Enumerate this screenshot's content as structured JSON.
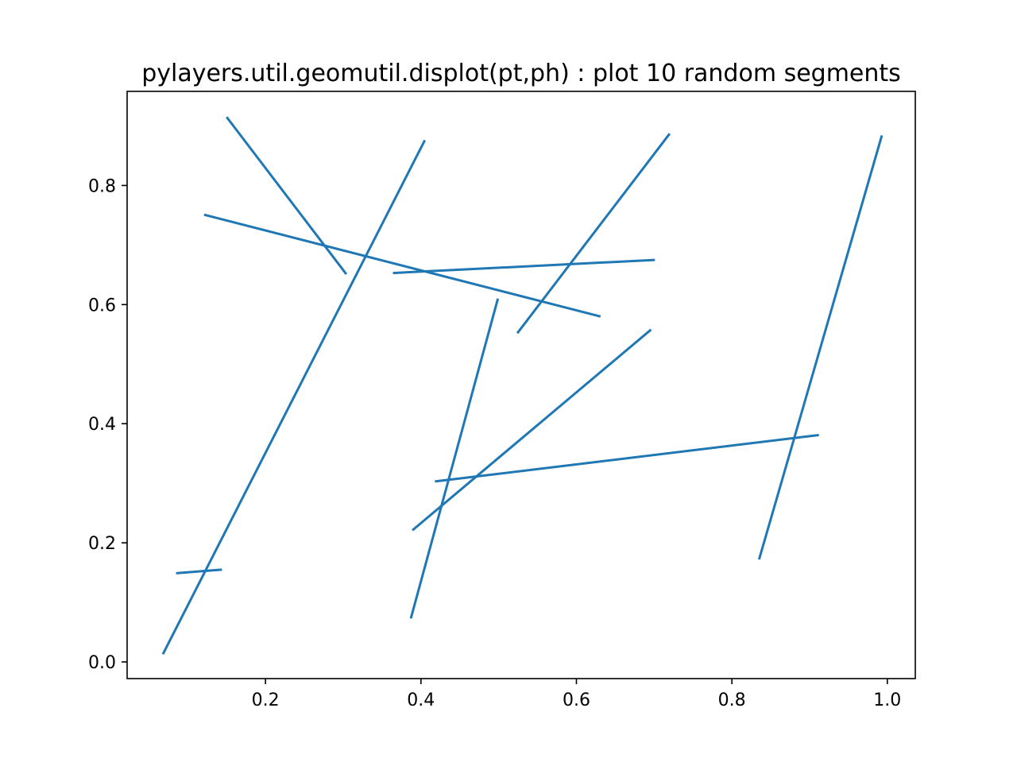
{
  "chart_data": {
    "type": "line",
    "title": "pylayers.util.geomutil.displot(pt,ph) : plot 10 random segments",
    "xlabel": "",
    "ylabel": "",
    "xlim": [
      0.022,
      1.036
    ],
    "ylim": [
      -0.028,
      0.958
    ],
    "xticks": [
      0.2,
      0.4,
      0.6,
      0.8,
      1.0
    ],
    "xtick_labels": [
      "0.2",
      "0.4",
      "0.6",
      "0.8",
      "1.0"
    ],
    "yticks": [
      0.0,
      0.2,
      0.4,
      0.6,
      0.8
    ],
    "ytick_labels": [
      "0.0",
      "0.2",
      "0.4",
      "0.6",
      "0.8"
    ],
    "grid": false,
    "legend": false,
    "color": "#1f77b4",
    "segments": [
      {
        "x": [
          0.15,
          0.304
        ],
        "y": [
          0.915,
          0.651
        ]
      },
      {
        "x": [
          0.068,
          0.405
        ],
        "y": [
          0.013,
          0.876
        ]
      },
      {
        "x": [
          0.121,
          0.631
        ],
        "y": [
          0.751,
          0.58
        ]
      },
      {
        "x": [
          0.364,
          0.701
        ],
        "y": [
          0.653,
          0.675
        ]
      },
      {
        "x": [
          0.524,
          0.72
        ],
        "y": [
          0.552,
          0.887
        ]
      },
      {
        "x": [
          0.387,
          0.499
        ],
        "y": [
          0.073,
          0.61
        ]
      },
      {
        "x": [
          0.389,
          0.696
        ],
        "y": [
          0.221,
          0.558
        ]
      },
      {
        "x": [
          0.418,
          0.912
        ],
        "y": [
          0.303,
          0.381
        ]
      },
      {
        "x": [
          0.835,
          0.993
        ],
        "y": [
          0.172,
          0.884
        ]
      },
      {
        "x": [
          0.085,
          0.144
        ],
        "y": [
          0.149,
          0.155
        ]
      }
    ]
  }
}
